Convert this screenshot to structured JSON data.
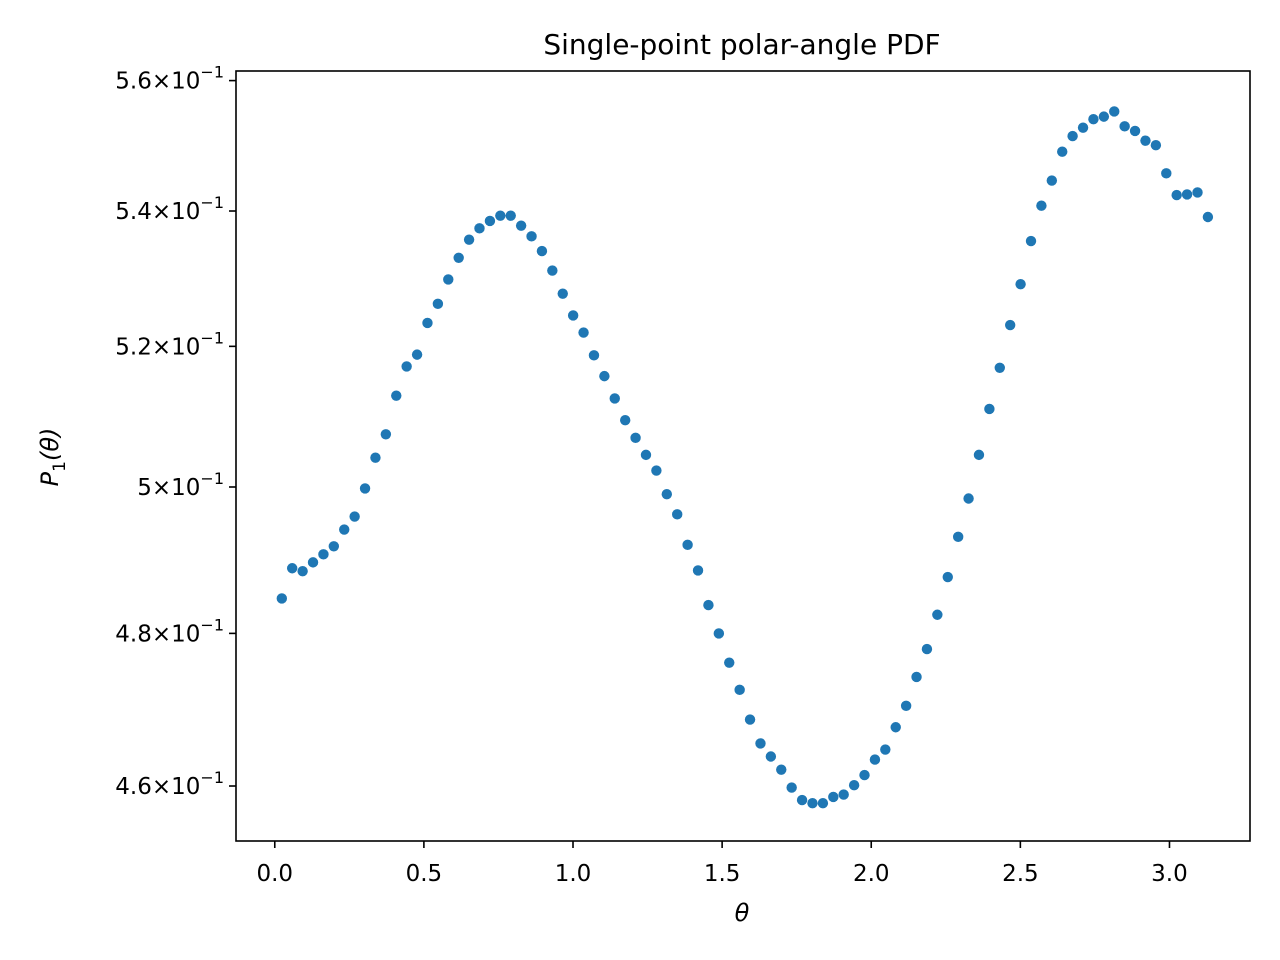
{
  "chart_data": {
    "type": "scatter",
    "title": "Single-point polar-angle PDF",
    "xlabel": "θ",
    "ylabel": "P1(θ)",
    "xlim": [
      -0.13,
      3.27
    ],
    "ylim": [
      0.453,
      0.5615
    ],
    "yscale": "log",
    "grid": false,
    "legend": "none",
    "marker_color": "#1f77b4",
    "xticks": [
      {
        "value": 0.0,
        "label": "0.0"
      },
      {
        "value": 0.5,
        "label": "0.5"
      },
      {
        "value": 1.0,
        "label": "1.0"
      },
      {
        "value": 1.5,
        "label": "1.5"
      },
      {
        "value": 2.0,
        "label": "2.0"
      },
      {
        "value": 2.5,
        "label": "2.5"
      },
      {
        "value": 3.0,
        "label": "3.0"
      }
    ],
    "yticks": [
      {
        "value": 0.46,
        "mantissa": "4.6",
        "base": "10",
        "exponent": "−1"
      },
      {
        "value": 0.48,
        "mantissa": "4.8",
        "base": "10",
        "exponent": "−1"
      },
      {
        "value": 0.5,
        "mantissa": "5",
        "base": "10",
        "exponent": "−1"
      },
      {
        "value": 0.52,
        "mantissa": "5.2",
        "base": "10",
        "exponent": "−1"
      },
      {
        "value": 0.54,
        "mantissa": "5.4",
        "base": "10",
        "exponent": "−1"
      },
      {
        "value": 0.56,
        "mantissa": "5.6",
        "base": "10",
        "exponent": "−1"
      }
    ],
    "x": [
      0.0236,
      0.0584,
      0.0934,
      0.1283,
      0.1632,
      0.198,
      0.2329,
      0.2678,
      0.3027,
      0.3376,
      0.3725,
      0.4074,
      0.4422,
      0.4772,
      0.512,
      0.5469,
      0.5818,
      0.6167,
      0.6516,
      0.6864,
      0.7214,
      0.7563,
      0.7912,
      0.8261,
      0.861,
      0.8958,
      0.9307,
      0.9656,
      1.0005,
      1.0354,
      1.0703,
      1.1052,
      1.14,
      1.175,
      1.2098,
      1.2447,
      1.2796,
      1.3145,
      1.3494,
      1.3843,
      1.4192,
      1.4541,
      1.489,
      1.5239,
      1.5588,
      1.5936,
      1.6286,
      1.6634,
      1.6983,
      1.7332,
      1.7681,
      1.803,
      1.8379,
      1.8728,
      1.9076,
      1.9426,
      1.9774,
      2.0124,
      2.0472,
      2.0821,
      2.117,
      2.1519,
      2.1868,
      2.2217,
      2.2566,
      2.2915,
      2.3264,
      2.3612,
      2.3962,
      2.431,
      2.4659,
      2.5008,
      2.5357,
      2.5706,
      2.6055,
      2.6404,
      2.6752,
      2.7102,
      2.745,
      2.78,
      2.8148,
      2.8497,
      2.8846,
      2.9195,
      2.9544,
      2.9893,
      3.0242,
      3.059,
      3.094,
      3.1288
    ],
    "y": [
      0.4847,
      0.4888,
      0.4884,
      0.4896,
      0.4907,
      0.4918,
      0.4941,
      0.4959,
      0.4998,
      0.5041,
      0.5074,
      0.5129,
      0.5171,
      0.5188,
      0.5234,
      0.5262,
      0.5298,
      0.533,
      0.5357,
      0.5374,
      0.5385,
      0.5393,
      0.5393,
      0.5378,
      0.5362,
      0.534,
      0.5311,
      0.5277,
      0.5245,
      0.522,
      0.5187,
      0.5157,
      0.5125,
      0.5094,
      0.5069,
      0.5045,
      0.5023,
      0.499,
      0.4962,
      0.492,
      0.4885,
      0.4838,
      0.48,
      0.4761,
      0.4725,
      0.4686,
      0.4655,
      0.4638,
      0.4621,
      0.4598,
      0.4582,
      0.4578,
      0.4578,
      0.4586,
      0.4589,
      0.4601,
      0.4614,
      0.4634,
      0.4647,
      0.4676,
      0.4704,
      0.4742,
      0.4779,
      0.4825,
      0.4876,
      0.4931,
      0.4984,
      0.5045,
      0.511,
      0.5169,
      0.5231,
      0.5291,
      0.5355,
      0.5408,
      0.5446,
      0.549,
      0.5514,
      0.5527,
      0.554,
      0.5544,
      0.5552,
      0.5529,
      0.5522,
      0.5507,
      0.55,
      0.5457,
      0.5424,
      0.5425,
      0.5428,
      0.5391
    ]
  }
}
